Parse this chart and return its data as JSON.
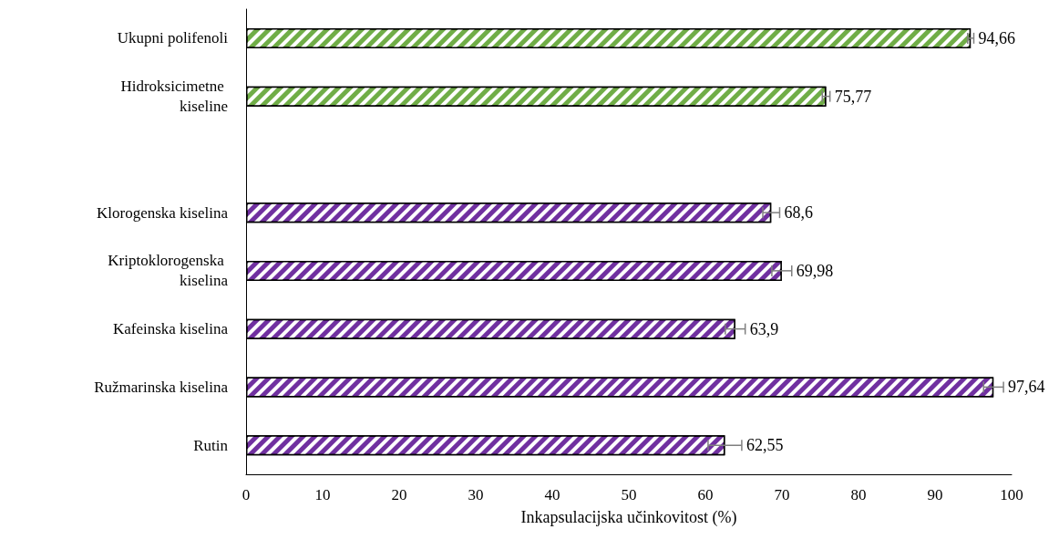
{
  "chart_data": {
    "type": "bar",
    "orientation": "horizontal",
    "xlabel": "Inkapsulacijska učinkovitost (%)",
    "categories": [
      "Ukupni polifenoli",
      "Hidroksicimetne kiseline",
      null,
      "Klorogenska kiselina",
      "Kriptoklorogenska kiselina",
      "Kafeinska kiselina",
      "Ružmarinska kiselina",
      "Rutin"
    ],
    "values": [
      94.66,
      75.77,
      null,
      68.6,
      69.98,
      63.9,
      97.64,
      62.55
    ],
    "value_labels": [
      "94,66",
      "75,77",
      null,
      "68,6",
      "69,98",
      "63,9",
      "97,64",
      "62,55"
    ],
    "errors": [
      0.4,
      0.5,
      null,
      1.1,
      1.3,
      1.3,
      1.3,
      2.2
    ],
    "colors": [
      "#70ad47",
      "#70ad47",
      null,
      "#7030a0",
      "#7030a0",
      "#7030a0",
      "#7030a0",
      "#7030a0"
    ],
    "xlim": [
      0,
      100
    ],
    "xticks": [
      0,
      10,
      20,
      30,
      40,
      50,
      60,
      70,
      80,
      90,
      100
    ],
    "grid": false
  }
}
